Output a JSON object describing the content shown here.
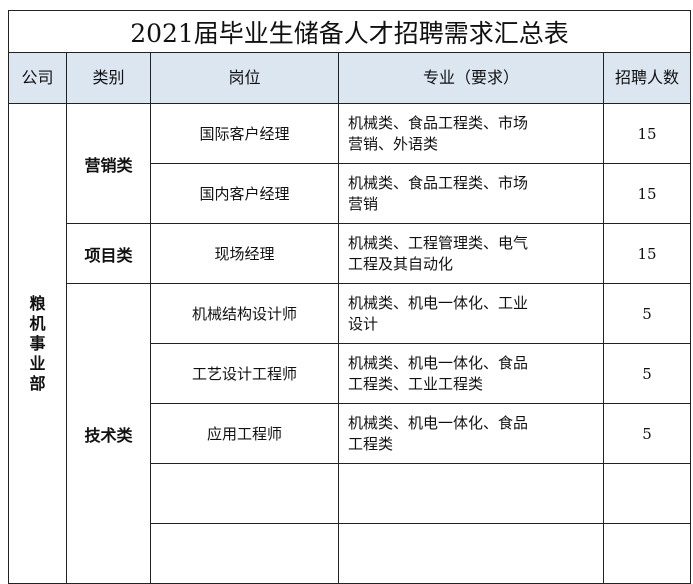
{
  "title": "2021届毕业生储备人才招聘需求汇总表",
  "header": {
    "company": "公司",
    "category": "类别",
    "position": "岗位",
    "major": "专业（要求）",
    "count": "招聘人数"
  },
  "company": "粮机事业部",
  "categories": {
    "sales": "营销类",
    "project": "项目类",
    "tech": "技术类"
  },
  "rows": [
    {
      "position": "国际客户经理",
      "major": "机械类、食品工程类、市场营销、外语类",
      "count": "15"
    },
    {
      "position": "国内客户经理",
      "major": "机械类、食品工程类、市场营销",
      "count": "15"
    },
    {
      "position": "现场经理",
      "major": "机械类、工程管理类、电气工程及其自动化",
      "count": "15"
    },
    {
      "position": "机械结构设计师",
      "major": "机械类、机电一体化、工业设计",
      "count": "5"
    },
    {
      "position": "工艺设计工程师",
      "major": "机械类、机电一体化、食品工程类、工业工程类",
      "count": "5"
    },
    {
      "position": "应用工程师",
      "major": "机械类、机电一体化、食品工程类",
      "count": "5"
    }
  ],
  "colors": {
    "header_bg": "#dce6f1",
    "border": "#222222"
  }
}
